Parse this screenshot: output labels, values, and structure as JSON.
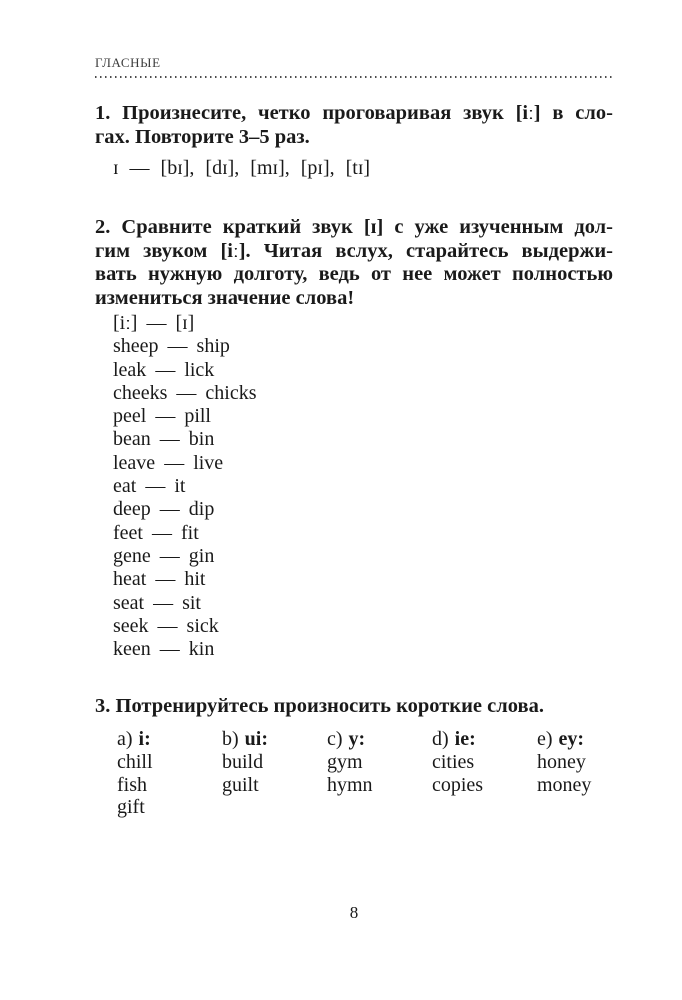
{
  "page": {
    "section_header": "ГЛАСНЫЕ",
    "page_number": "8"
  },
  "exercise1": {
    "heading_lines": [
      "1. Произнесите, четко проговаривая звук [iː] в сло-",
      "гах. Повторите 3–5 раз."
    ],
    "syllables_line": "ɪ — [bɪ], [dɪ], [mɪ], [pɪ], [tɪ]"
  },
  "exercise2": {
    "heading_lines": [
      "2. Сравните краткий звук [ɪ] с уже изученным дол-",
      "гим звуком [iː]. Читая вслух, старайтесь выдержи-",
      "вать нужную долготу, ведь от нее может полностью",
      "измениться значение слова!"
    ],
    "separator": "—",
    "pairs": [
      {
        "long": "[iː]",
        "short": "[ɪ]"
      },
      {
        "long": "sheep",
        "short": "ship"
      },
      {
        "long": "leak",
        "short": "lick"
      },
      {
        "long": "cheeks",
        "short": "chicks"
      },
      {
        "long": "peel",
        "short": "pill"
      },
      {
        "long": "bean",
        "short": "bin"
      },
      {
        "long": "leave",
        "short": "live"
      },
      {
        "long": "eat",
        "short": "it"
      },
      {
        "long": "deep",
        "short": "dip"
      },
      {
        "long": "feet",
        "short": "fit"
      },
      {
        "long": "gene",
        "short": "gin"
      },
      {
        "long": "heat",
        "short": "hit"
      },
      {
        "long": "seat",
        "short": "sit"
      },
      {
        "long": "seek",
        "short": "sick"
      },
      {
        "long": "keen",
        "short": "kin"
      }
    ]
  },
  "exercise3": {
    "heading": "3. Потренируйтесь произносить короткие слова.",
    "columns": [
      {
        "prefix": "a)",
        "key": "i:",
        "words": [
          "chill",
          "fish",
          "gift"
        ]
      },
      {
        "prefix": "b)",
        "key": "ui:",
        "words": [
          "build",
          "guilt"
        ]
      },
      {
        "prefix": "c)",
        "key": "y:",
        "words": [
          "gym",
          "hymn"
        ]
      },
      {
        "prefix": "d)",
        "key": "ie:",
        "words": [
          "cities",
          "copies"
        ]
      },
      {
        "prefix": "e)",
        "key": "ey:",
        "words": [
          "honey",
          "money"
        ]
      }
    ]
  }
}
